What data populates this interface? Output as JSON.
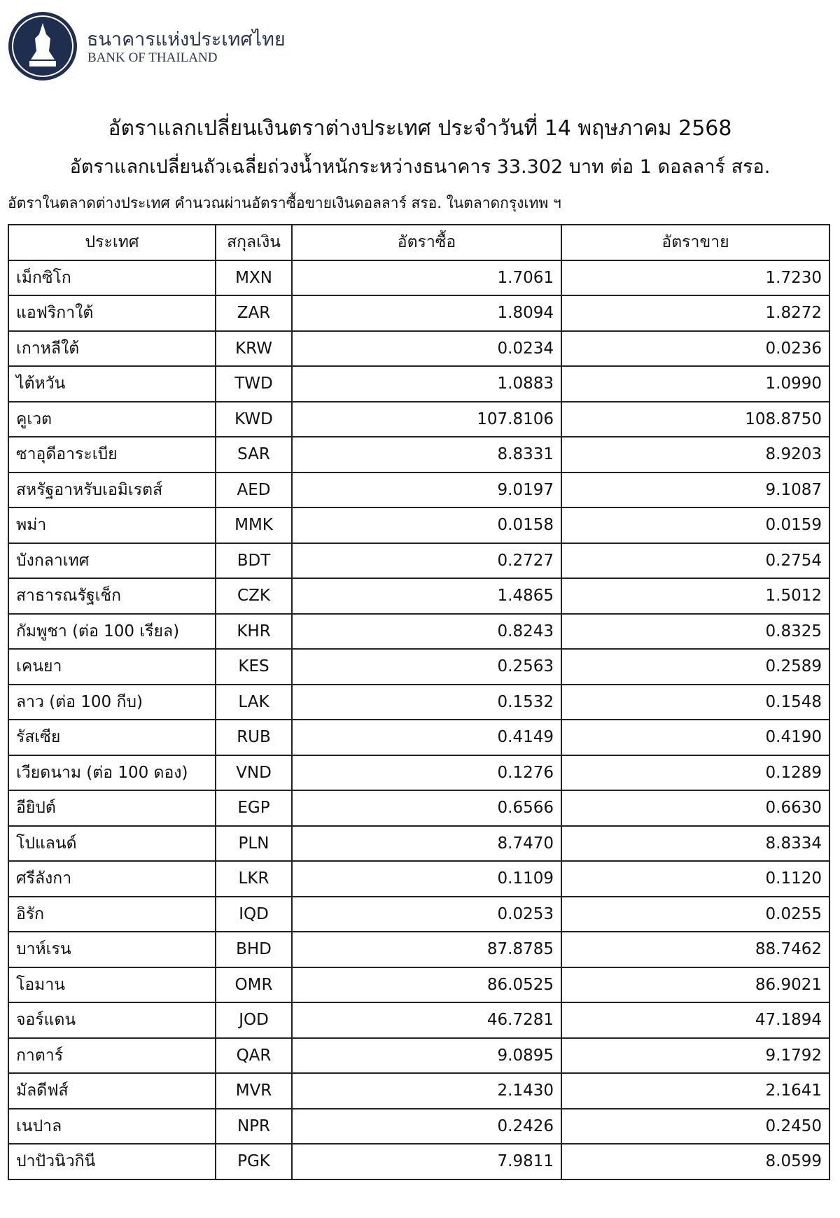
{
  "header": {
    "org_th": "ธนาคารแห่งประเทศไทย",
    "org_en": "BANK OF THAILAND"
  },
  "title": "อัตราแลกเปลี่ยนเงินตราต่างประเทศ ประจำวันที่ 14 พฤษภาคม 2568",
  "subtitle": "อัตราแลกเปลี่ยนถัวเฉลี่ยถ่วงน้ำหนักระหว่างธนาคาร 33.302 บาท ต่อ 1 ดอลลาร์ สรอ.",
  "note": "อัตราในตลาดต่างประเทศ คำนวณผ่านอัตราซื้อขายเงินดอลลาร์ สรอ. ในตลาดกรุงเทพ ฯ",
  "table": {
    "columns": [
      "ประเทศ",
      "สกุลเงิน",
      "อัตราซื้อ",
      "อัตราขาย"
    ],
    "rows": [
      [
        "เม็กซิโก",
        "MXN",
        "1.7061",
        "1.7230"
      ],
      [
        "แอฟริกาใต้",
        "ZAR",
        "1.8094",
        "1.8272"
      ],
      [
        "เกาหลีใต้",
        "KRW",
        "0.0234",
        "0.0236"
      ],
      [
        "ไต้หวัน",
        "TWD",
        "1.0883",
        "1.0990"
      ],
      [
        "คูเวต",
        "KWD",
        "107.8106",
        "108.8750"
      ],
      [
        "ซาอุดีอาระเบีย",
        "SAR",
        "8.8331",
        "8.9203"
      ],
      [
        "สหรัฐอาหรับเอมิเรตส์",
        "AED",
        "9.0197",
        "9.1087"
      ],
      [
        "พม่า",
        "MMK",
        "0.0158",
        "0.0159"
      ],
      [
        "บังกลาเทศ",
        "BDT",
        "0.2727",
        "0.2754"
      ],
      [
        "สาธารณรัฐเช็ก",
        "CZK",
        "1.4865",
        "1.5012"
      ],
      [
        "กัมพูชา (ต่อ 100 เรียล)",
        "KHR",
        "0.8243",
        "0.8325"
      ],
      [
        "เคนยา",
        "KES",
        "0.2563",
        "0.2589"
      ],
      [
        "ลาว (ต่อ 100 กีบ)",
        "LAK",
        "0.1532",
        "0.1548"
      ],
      [
        "รัสเซีย",
        "RUB",
        "0.4149",
        "0.4190"
      ],
      [
        "เวียดนาม (ต่อ 100 ดอง)",
        "VND",
        "0.1276",
        "0.1289"
      ],
      [
        "อียิปต์",
        "EGP",
        "0.6566",
        "0.6630"
      ],
      [
        "โปแลนด์",
        "PLN",
        "8.7470",
        "8.8334"
      ],
      [
        "ศรีลังกา",
        "LKR",
        "0.1109",
        "0.1120"
      ],
      [
        "อิรัก",
        "IQD",
        "0.0253",
        "0.0255"
      ],
      [
        "บาห์เรน",
        "BHD",
        "87.8785",
        "88.7462"
      ],
      [
        "โอมาน",
        "OMR",
        "86.0525",
        "86.9021"
      ],
      [
        "จอร์แดน",
        "JOD",
        "46.7281",
        "47.1894"
      ],
      [
        "กาตาร์",
        "QAR",
        "9.0895",
        "9.1792"
      ],
      [
        "มัลดีฟส์",
        "MVR",
        "2.1430",
        "2.1641"
      ],
      [
        "เนปาล",
        "NPR",
        "0.2426",
        "0.2450"
      ],
      [
        "ปาปัวนิวกินี",
        "PGK",
        "7.9811",
        "8.0599"
      ]
    ]
  }
}
